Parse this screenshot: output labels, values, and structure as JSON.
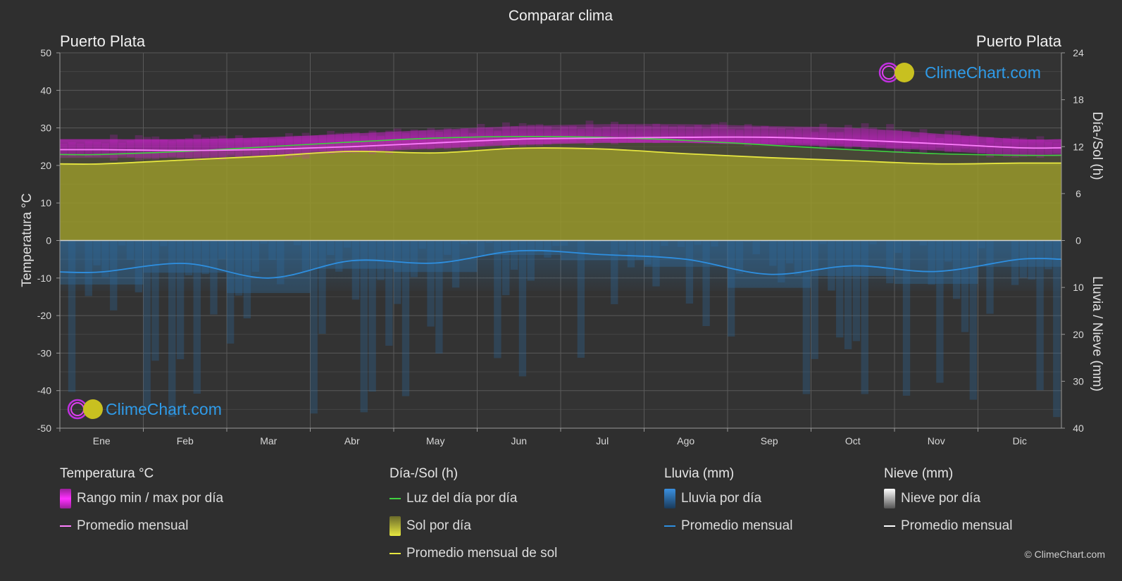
{
  "title": "Comparar clima",
  "location_left": "Puerto Plata",
  "location_right": "Puerto Plata",
  "brand": "ClimeChart.com",
  "copyright": "© ClimeChart.com",
  "colors": {
    "background": "#2f2f2f",
    "temp_range": "#e020e0",
    "temp_avg": "#ff80ff",
    "daylight": "#40d040",
    "sun_fill": "#a8a830",
    "sun_avg": "#e6e640",
    "rain": "#2f7fc0",
    "rain_avg": "#2e8fe0",
    "snow": "#ffffff",
    "brand_text": "#2f9be8"
  },
  "chart_data": {
    "type": "area",
    "title": "Comparar clima",
    "months": [
      "Ene",
      "Feb",
      "Mar",
      "Abr",
      "May",
      "Jun",
      "Jul",
      "Ago",
      "Sep",
      "Oct",
      "Nov",
      "Dic"
    ],
    "y_left": {
      "label": "Temperatura °C",
      "range": [
        -50,
        50
      ],
      "ticks": [
        "50",
        "40",
        "30",
        "20",
        "10",
        "0",
        "-10",
        "-20",
        "-30",
        "-40",
        "-50"
      ]
    },
    "y_right_top": {
      "label": "Día-/Sol (h)",
      "range": [
        0,
        24
      ],
      "ticks": [
        "24",
        "18",
        "12",
        "6",
        "0"
      ]
    },
    "y_right_bottom": {
      "label": "Lluvia / Nieve (mm)",
      "range": [
        0,
        40
      ],
      "ticks": [
        "10",
        "20",
        "30",
        "40"
      ]
    },
    "grid": true,
    "series": [
      {
        "name": "Promedio mensual",
        "group": "temperature",
        "unit": "°C",
        "values": [
          24.2,
          24.0,
          24.3,
          25.0,
          26.0,
          27.0,
          27.3,
          27.5,
          27.5,
          26.8,
          25.8,
          24.7
        ]
      },
      {
        "name": "Rango min / max por día",
        "group": "temperature",
        "unit": "°C",
        "min": [
          22.0,
          22.0,
          22.5,
          23.5,
          24.5,
          25.5,
          26.0,
          26.0,
          25.5,
          25.0,
          24.0,
          22.5
        ],
        "max": [
          27.0,
          27.0,
          27.5,
          28.5,
          29.5,
          30.5,
          31.0,
          31.0,
          30.5,
          30.0,
          28.5,
          27.0
        ]
      },
      {
        "name": "Luz del día por día",
        "group": "daylight",
        "unit": "h",
        "values": [
          11.0,
          11.4,
          12.0,
          12.6,
          13.1,
          13.3,
          13.2,
          12.8,
          12.2,
          11.6,
          11.1,
          10.9
        ]
      },
      {
        "name": "Promedio mensual de sol",
        "group": "sunshine",
        "unit": "h",
        "values": [
          9.8,
          10.3,
          10.8,
          11.4,
          11.2,
          11.8,
          11.7,
          11.1,
          10.6,
          10.2,
          9.8,
          9.9
        ]
      },
      {
        "name": "Lluvia promedio mensual",
        "group": "rain",
        "unit": "mm",
        "values": [
          6.7,
          4.9,
          8.0,
          4.3,
          4.8,
          2.2,
          3.0,
          4.0,
          7.2,
          5.4,
          6.6,
          4.0
        ]
      }
    ]
  },
  "legend": [
    {
      "title": "Temperatura °C",
      "items": [
        {
          "label": "Rango min / max por día",
          "kind": "block",
          "color": "#e020e0"
        },
        {
          "label": "Promedio mensual",
          "kind": "line",
          "color": "#ff80ff"
        }
      ]
    },
    {
      "title": "Día-/Sol (h)",
      "items": [
        {
          "label": "Luz del día por día",
          "kind": "line",
          "color": "#40d040"
        },
        {
          "label": "Sol por día",
          "kind": "block",
          "color": "#c8c830"
        },
        {
          "label": "Promedio mensual de sol",
          "kind": "line",
          "color": "#e6e640"
        }
      ]
    },
    {
      "title": "Lluvia (mm)",
      "items": [
        {
          "label": "Lluvia por día",
          "kind": "block",
          "color": "#2f7fc0"
        },
        {
          "label": "Promedio mensual",
          "kind": "line",
          "color": "#2e8fe0"
        }
      ]
    },
    {
      "title": "Nieve (mm)",
      "items": [
        {
          "label": "Nieve por día",
          "kind": "block",
          "color": "#d0d0d0"
        },
        {
          "label": "Promedio mensual",
          "kind": "line",
          "color": "#ffffff"
        }
      ]
    }
  ]
}
